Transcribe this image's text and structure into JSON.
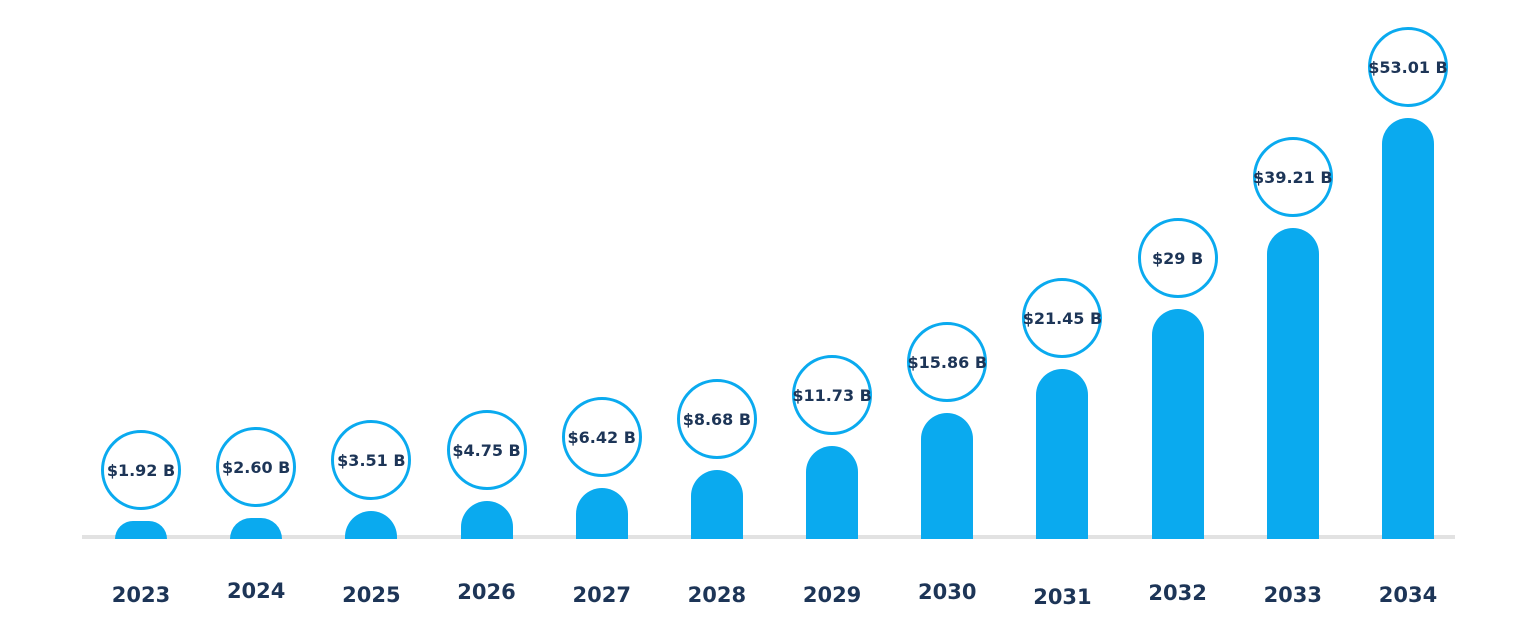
{
  "chart_data": {
    "type": "bar",
    "title": "",
    "xlabel": "",
    "ylabel": "",
    "unit": "USD billions",
    "categories": [
      "2023",
      "2024",
      "2025",
      "2026",
      "2027",
      "2028",
      "2029",
      "2030",
      "2031",
      "2032",
      "2033",
      "2034"
    ],
    "values": [
      1.92,
      2.6,
      3.51,
      4.75,
      6.42,
      8.68,
      11.73,
      15.86,
      21.45,
      29,
      39.21,
      53.01
    ],
    "data_labels": [
      "$1.92 B",
      "$2.60 B",
      "$3.51 B",
      "$4.75 B",
      "$6.42 B",
      "$8.68 B",
      "$11.73 B",
      "$15.86 B",
      "$21.45 B",
      "$29 B",
      "$39.21 B",
      "$53.01 B"
    ],
    "ylim": [
      0,
      55
    ],
    "grid": false,
    "legend": false,
    "data_label_style": "circled-bubble-above-bar",
    "bar_style": "rounded-top"
  },
  "colors": {
    "bar": "#0AAAEF",
    "bubble_border": "#0AAAEF",
    "text": "#1D3557",
    "axis_line": "#E2E2E2",
    "background": "#FFFFFF"
  }
}
